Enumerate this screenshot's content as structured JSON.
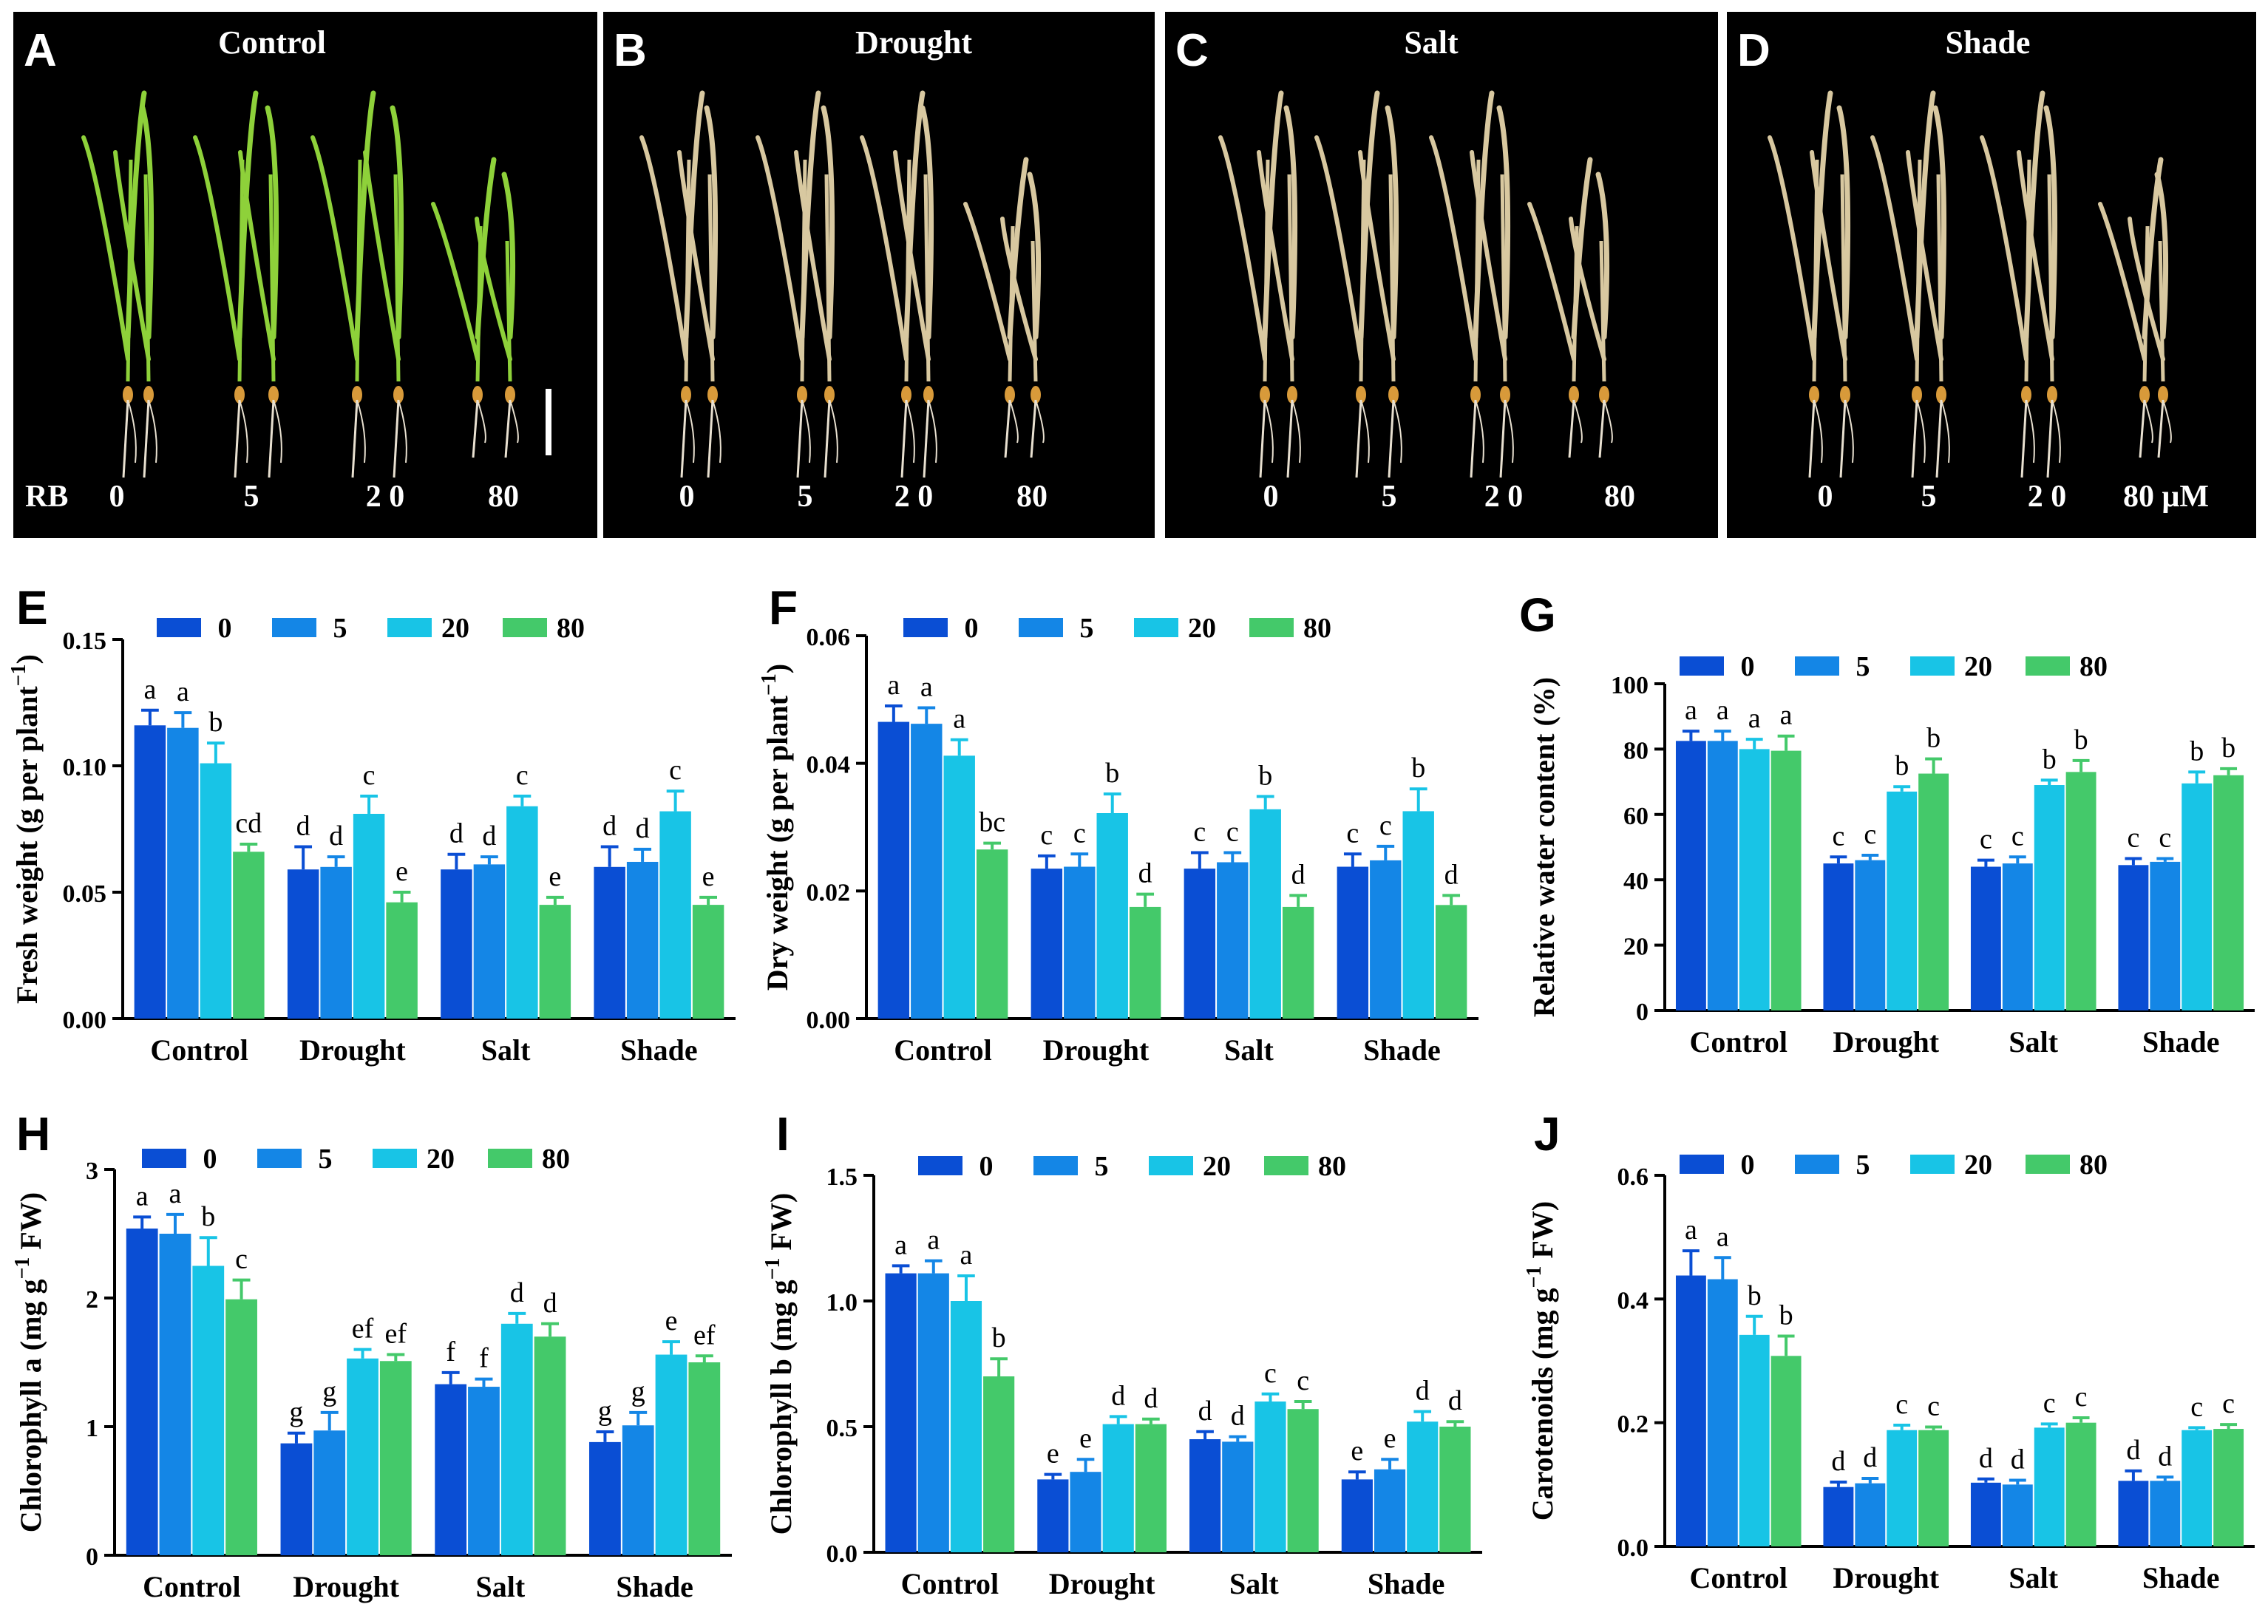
{
  "colors": {
    "c0": "#0a4ed4",
    "c5": "#1486e6",
    "c20": "#18c4e6",
    "c80": "#44c96a",
    "leaf_green": "#8ed13a",
    "leaf_dry": "#d8c8a0",
    "root": "#e8e0d0",
    "photo_bg": "#000000"
  },
  "photos": [
    {
      "label": "A",
      "title": "Control",
      "prefix": "RB",
      "concentrations": [
        "0",
        "5",
        "2 0",
        "80"
      ],
      "leaf_color": "leaf_green"
    },
    {
      "label": "B",
      "title": "Drought",
      "prefix": "",
      "concentrations": [
        "0",
        "5",
        "2 0",
        "80"
      ],
      "leaf_color": "leaf_dry"
    },
    {
      "label": "C",
      "title": "Salt",
      "prefix": "",
      "concentrations": [
        "0",
        "5",
        "2 0",
        "80"
      ],
      "leaf_color": "leaf_dry"
    },
    {
      "label": "D",
      "title": "Shade",
      "prefix": "",
      "concentrations": [
        "0",
        "5",
        "2 0",
        "80 μM"
      ],
      "leaf_color": "leaf_dry"
    }
  ],
  "chart_data": [
    {
      "panel": "E",
      "type": "bar",
      "categories": [
        "Control",
        "Drought",
        "Salt",
        "Shade"
      ],
      "legend": [
        "0",
        "5",
        "20",
        "80"
      ],
      "ylabel_main": "Fresh weight (g per plant",
      "ylabel_sup": "−1",
      "ylabel_end": ")",
      "ylim": [
        0,
        0.15
      ],
      "ticks": [
        "0.00",
        "0.05",
        "0.10",
        "0.15"
      ],
      "tick_values": [
        0,
        0.05,
        0.1,
        0.15
      ],
      "series": [
        {
          "name": "0",
          "values": [
            0.116,
            0.059,
            0.059,
            0.06
          ],
          "errors": [
            0.006,
            0.009,
            0.006,
            0.008
          ],
          "letters": [
            "a",
            "d",
            "d",
            "d"
          ]
        },
        {
          "name": "5",
          "values": [
            0.115,
            0.06,
            0.061,
            0.062
          ],
          "errors": [
            0.006,
            0.004,
            0.003,
            0.005
          ],
          "letters": [
            "a",
            "d",
            "d",
            "d"
          ]
        },
        {
          "name": "20",
          "values": [
            0.101,
            0.081,
            0.084,
            0.082
          ],
          "errors": [
            0.008,
            0.007,
            0.004,
            0.008
          ],
          "letters": [
            "b",
            "c",
            "c",
            "c"
          ]
        },
        {
          "name": "80",
          "values": [
            0.066,
            0.046,
            0.045,
            0.045
          ],
          "errors": [
            0.003,
            0.004,
            0.003,
            0.003
          ],
          "letters": [
            "cd",
            "e",
            "e",
            "e"
          ]
        }
      ]
    },
    {
      "panel": "F",
      "type": "bar",
      "categories": [
        "Control",
        "Drought",
        "Salt",
        "Shade"
      ],
      "legend": [
        "0",
        "5",
        "20",
        "80"
      ],
      "ylabel_main": "Dry weight (g per plant",
      "ylabel_sup": "−1",
      "ylabel_end": ")",
      "ylim": [
        0,
        0.06
      ],
      "ticks": [
        "0.00",
        "0.02",
        "0.04",
        "0.06"
      ],
      "tick_values": [
        0,
        0.02,
        0.04,
        0.06
      ],
      "series": [
        {
          "name": "0",
          "values": [
            0.0465,
            0.0235,
            0.0235,
            0.0238
          ],
          "errors": [
            0.0025,
            0.002,
            0.0025,
            0.002
          ],
          "letters": [
            "a",
            "c",
            "c",
            "c"
          ]
        },
        {
          "name": "5",
          "values": [
            0.0462,
            0.0238,
            0.0245,
            0.0248
          ],
          "errors": [
            0.0025,
            0.002,
            0.0015,
            0.0022
          ],
          "letters": [
            "a",
            "c",
            "c",
            "c"
          ]
        },
        {
          "name": "20",
          "values": [
            0.0412,
            0.0322,
            0.0328,
            0.0325
          ],
          "errors": [
            0.0025,
            0.003,
            0.002,
            0.0035
          ],
          "letters": [
            "a",
            "b",
            "b",
            "b"
          ]
        },
        {
          "name": "80",
          "values": [
            0.0265,
            0.0175,
            0.0175,
            0.0178
          ],
          "errors": [
            0.001,
            0.002,
            0.0018,
            0.0015
          ],
          "letters": [
            "bc",
            "d",
            "d",
            "d"
          ]
        }
      ]
    },
    {
      "panel": "G",
      "type": "bar",
      "categories": [
        "Control",
        "Drought",
        "Salt",
        "Shade"
      ],
      "legend": [
        "0",
        "5",
        "20",
        "80"
      ],
      "ylabel_main": "Relative water content (%)",
      "ylabel_sup": "",
      "ylabel_end": "",
      "ylim": [
        0,
        100
      ],
      "ticks": [
        "0",
        "20",
        "40",
        "60",
        "80",
        "100"
      ],
      "tick_values": [
        0,
        20,
        40,
        60,
        80,
        100
      ],
      "series": [
        {
          "name": "0",
          "values": [
            82.5,
            45.0,
            44.0,
            44.5
          ],
          "errors": [
            3.0,
            2.0,
            2.0,
            2.0
          ],
          "letters": [
            "a",
            "c",
            "c",
            "c"
          ]
        },
        {
          "name": "5",
          "values": [
            82.5,
            46.0,
            45.0,
            45.5
          ],
          "errors": [
            3.0,
            1.5,
            2.0,
            1.0
          ],
          "letters": [
            "a",
            "c",
            "c",
            "c"
          ]
        },
        {
          "name": "20",
          "values": [
            80.0,
            67.0,
            69.0,
            69.5
          ],
          "errors": [
            3.0,
            1.5,
            1.5,
            3.5
          ],
          "letters": [
            "a",
            "b",
            "b",
            "b"
          ]
        },
        {
          "name": "80",
          "values": [
            79.5,
            72.5,
            73.0,
            72.0
          ],
          "errors": [
            4.5,
            4.5,
            3.5,
            2.0
          ],
          "letters": [
            "a",
            "b",
            "b",
            "b"
          ]
        }
      ]
    },
    {
      "panel": "H",
      "type": "bar",
      "categories": [
        "Control",
        "Drought",
        "Salt",
        "Shade"
      ],
      "legend": [
        "0",
        "5",
        "20",
        "80"
      ],
      "ylabel_main": "Chlorophyll a (mg g",
      "ylabel_sup": "−1",
      "ylabel_end": " FW)",
      "ylim": [
        0,
        3
      ],
      "ticks": [
        "0",
        "1",
        "2",
        "3"
      ],
      "tick_values": [
        0,
        1,
        2,
        3
      ],
      "series": [
        {
          "name": "0",
          "values": [
            2.54,
            0.87,
            1.33,
            0.88
          ],
          "errors": [
            0.09,
            0.08,
            0.09,
            0.08
          ],
          "letters": [
            "a",
            "g",
            "f",
            "g"
          ]
        },
        {
          "name": "5",
          "values": [
            2.5,
            0.97,
            1.31,
            1.01
          ],
          "errors": [
            0.15,
            0.14,
            0.06,
            0.1
          ],
          "letters": [
            "a",
            "g",
            "f",
            "g"
          ]
        },
        {
          "name": "20",
          "values": [
            2.25,
            1.53,
            1.8,
            1.56
          ],
          "errors": [
            0.22,
            0.07,
            0.08,
            0.1
          ],
          "letters": [
            "b",
            "ef",
            "d",
            "e"
          ]
        },
        {
          "name": "80",
          "values": [
            1.99,
            1.51,
            1.7,
            1.5
          ],
          "errors": [
            0.15,
            0.05,
            0.1,
            0.05
          ],
          "letters": [
            "c",
            "ef",
            "d",
            "ef"
          ]
        }
      ]
    },
    {
      "panel": "I",
      "type": "bar",
      "categories": [
        "Control",
        "Drought",
        "Salt",
        "Shade"
      ],
      "legend": [
        "0",
        "5",
        "20",
        "80"
      ],
      "ylabel_main": "Chlorophyll b (mg g",
      "ylabel_sup": "−1",
      "ylabel_end": " FW)",
      "ylim": [
        0,
        1.5
      ],
      "ticks": [
        "0.0",
        "0.5",
        "1.0",
        "1.5"
      ],
      "tick_values": [
        0,
        0.5,
        1.0,
        1.5
      ],
      "series": [
        {
          "name": "0",
          "values": [
            1.11,
            0.29,
            0.45,
            0.29
          ],
          "errors": [
            0.03,
            0.02,
            0.03,
            0.03
          ],
          "letters": [
            "a",
            "e",
            "d",
            "e"
          ]
        },
        {
          "name": "5",
          "values": [
            1.11,
            0.32,
            0.44,
            0.33
          ],
          "errors": [
            0.05,
            0.05,
            0.02,
            0.04
          ],
          "letters": [
            "a",
            "e",
            "d",
            "e"
          ]
        },
        {
          "name": "20",
          "values": [
            1.0,
            0.51,
            0.6,
            0.52
          ],
          "errors": [
            0.1,
            0.03,
            0.03,
            0.04
          ],
          "letters": [
            "a",
            "d",
            "c",
            "d"
          ]
        },
        {
          "name": "80",
          "values": [
            0.7,
            0.51,
            0.57,
            0.5
          ],
          "errors": [
            0.07,
            0.02,
            0.03,
            0.02
          ],
          "letters": [
            "b",
            "d",
            "c",
            "d"
          ]
        }
      ]
    },
    {
      "panel": "J",
      "type": "bar",
      "categories": [
        "Control",
        "Drought",
        "Salt",
        "Shade"
      ],
      "legend": [
        "0",
        "5",
        "20",
        "80"
      ],
      "ylabel_main": "Carotenoids (mg g",
      "ylabel_sup": "−1",
      "ylabel_end": " FW)",
      "ylim": [
        0,
        0.6
      ],
      "ticks": [
        "0.0",
        "0.2",
        "0.4",
        "0.6"
      ],
      "tick_values": [
        0,
        0.2,
        0.4,
        0.6
      ],
      "series": [
        {
          "name": "0",
          "values": [
            0.438,
            0.096,
            0.103,
            0.106
          ],
          "errors": [
            0.04,
            0.008,
            0.006,
            0.016
          ],
          "letters": [
            "a",
            "d",
            "d",
            "d"
          ]
        },
        {
          "name": "5",
          "values": [
            0.432,
            0.102,
            0.1,
            0.106
          ],
          "errors": [
            0.035,
            0.008,
            0.007,
            0.006
          ],
          "letters": [
            "a",
            "d",
            "d",
            "d"
          ]
        },
        {
          "name": "20",
          "values": [
            0.342,
            0.188,
            0.192,
            0.188
          ],
          "errors": [
            0.03,
            0.008,
            0.006,
            0.004
          ],
          "letters": [
            "b",
            "c",
            "c",
            "c"
          ]
        },
        {
          "name": "80",
          "values": [
            0.308,
            0.188,
            0.2,
            0.19
          ],
          "errors": [
            0.032,
            0.005,
            0.008,
            0.007
          ],
          "letters": [
            "b",
            "c",
            "c",
            "c"
          ]
        }
      ]
    }
  ]
}
